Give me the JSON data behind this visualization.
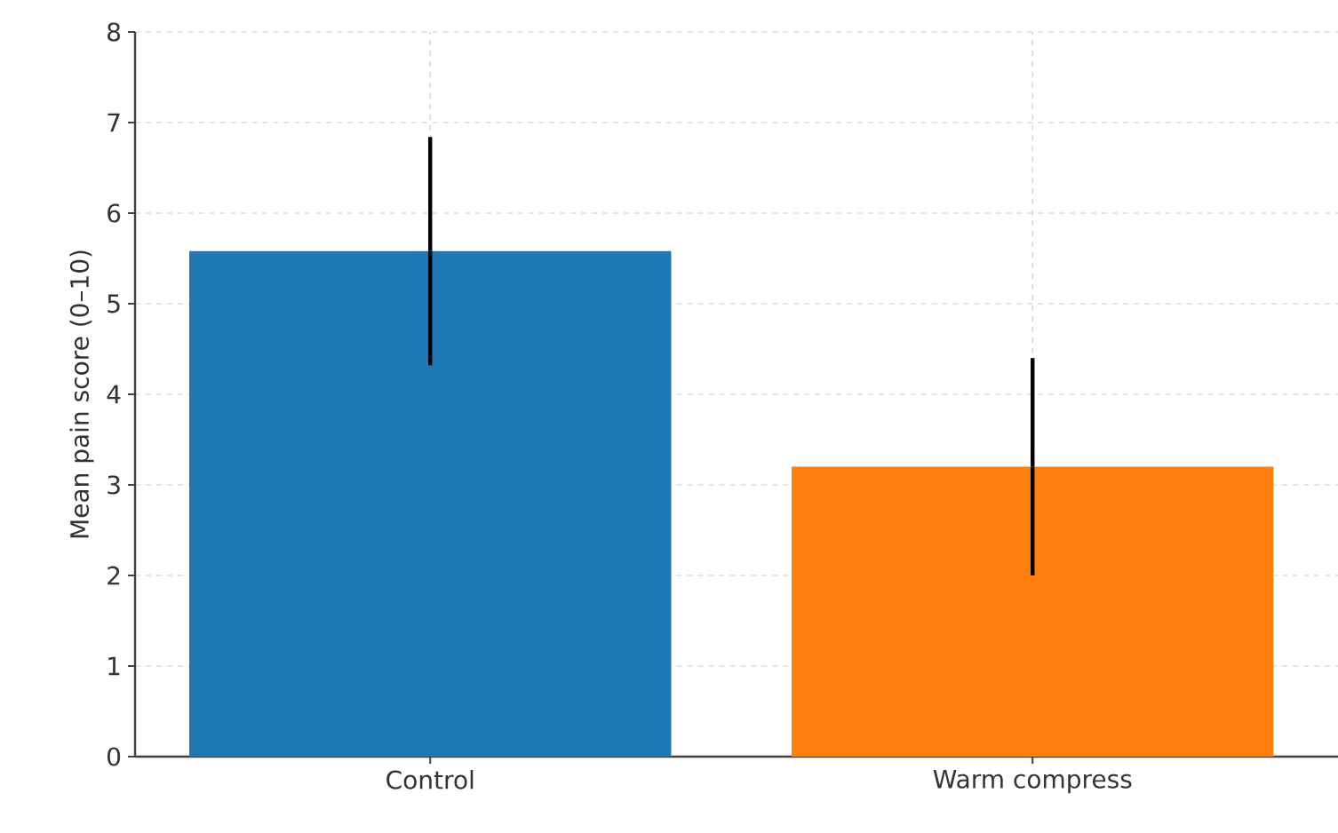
{
  "chart_data": {
    "type": "bar",
    "ylabel": "Mean pain score (0–10)",
    "categories": [
      "Control",
      "Warm compress"
    ],
    "values": [
      5.58,
      3.2
    ],
    "colors": [
      "#1f77b4",
      "#ff7f0e"
    ],
    "errors": [
      1.26,
      1.2
    ],
    "ylim": [
      0,
      8
    ],
    "yticks": [
      0,
      1,
      2,
      3,
      4,
      5,
      6,
      7,
      8
    ],
    "grid": true
  }
}
